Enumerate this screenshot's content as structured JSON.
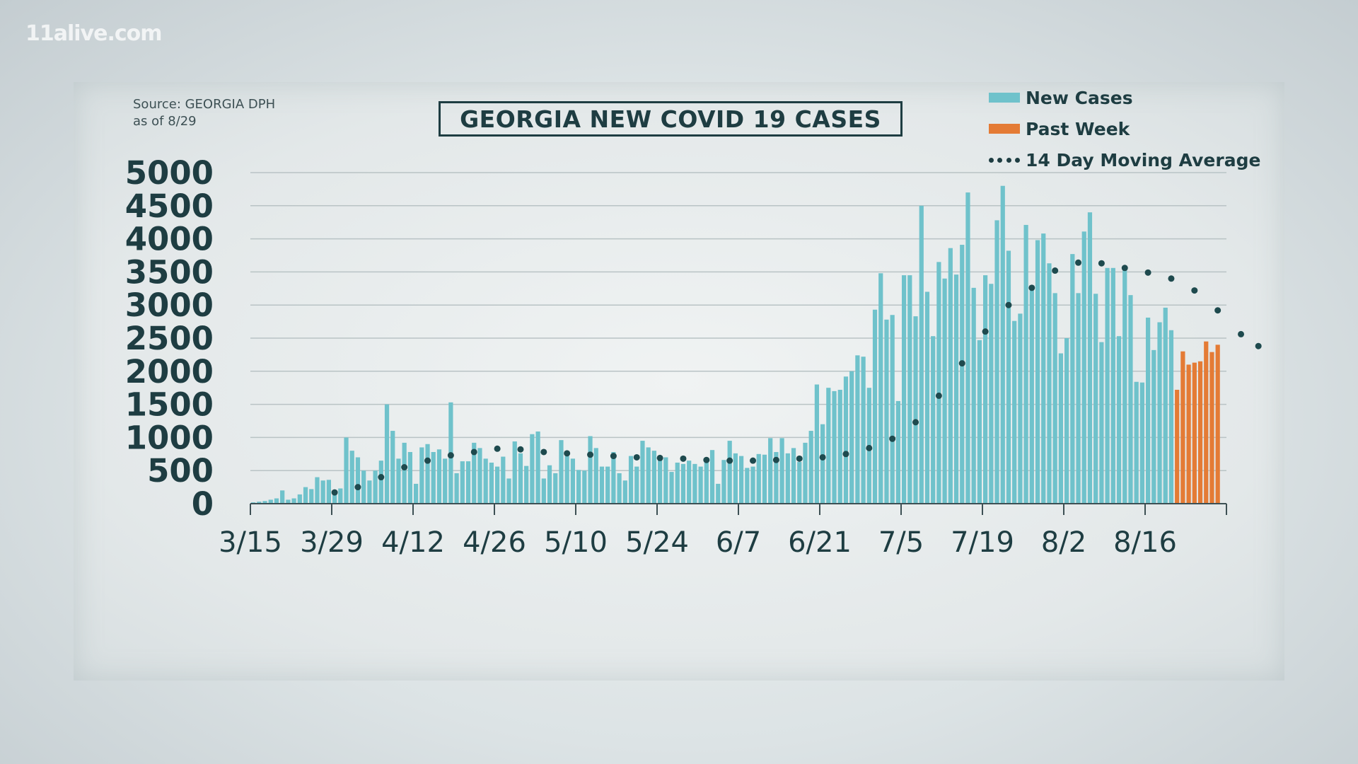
{
  "watermark": "11alive.com",
  "source_line1": "Source: GEORGIA DPH",
  "source_line2": "as of 8/29",
  "colors": {
    "new_cases": "#6fc2cb",
    "past_week": "#e47b35",
    "avg": "#1e4a4e",
    "text": "#1e3d42"
  },
  "chart_data": {
    "type": "bar",
    "title": "GEORGIA NEW COVID 19 CASES",
    "legend": {
      "new_cases": "New Cases",
      "past_week": "Past Week",
      "moving_avg": "14 Day Moving Average"
    },
    "legend_position": "top-right",
    "ylim": [
      0,
      5000
    ],
    "yticks": [
      "0",
      "500",
      "1000",
      "1500",
      "2000",
      "2500",
      "3000",
      "3500",
      "4000",
      "4500",
      "5000"
    ],
    "xticks": [
      "3/15",
      "3/29",
      "4/12",
      "4/26",
      "5/10",
      "5/24",
      "6/7",
      "6/21",
      "7/5",
      "7/19",
      "8/2",
      "8/16"
    ],
    "start_date": "3/15",
    "grid": true,
    "series": [
      {
        "name": "New Cases",
        "values": [
          20,
          30,
          40,
          60,
          80,
          200,
          60,
          80,
          140,
          250,
          220,
          400,
          350,
          360,
          200,
          230,
          1000,
          800,
          700,
          500,
          350,
          500,
          650,
          1500,
          1100,
          680,
          920,
          780,
          300,
          850,
          900,
          780,
          820,
          680,
          1530,
          460,
          640,
          640,
          920,
          840,
          680,
          620,
          560,
          710,
          380,
          940,
          760,
          570,
          1050,
          1090,
          380,
          580,
          460,
          960,
          720,
          680,
          510,
          500,
          1020,
          840,
          560,
          560,
          780,
          460,
          350,
          720,
          560,
          950,
          850,
          800,
          660,
          700,
          480,
          620,
          600,
          650,
          600,
          560,
          690,
          810,
          300,
          660,
          950,
          760,
          720,
          540,
          560,
          750,
          740,
          990,
          780,
          990,
          760,
          840,
          630,
          920,
          1100,
          1800,
          1200,
          1750,
          1700,
          1720,
          1920,
          2000,
          2240,
          2220,
          1750,
          2930,
          3480,
          2780,
          2850,
          1550,
          3450,
          3450,
          2830,
          4500,
          3200,
          2530,
          3650,
          3400,
          3860,
          3460,
          3910,
          4700,
          3260,
          2470,
          3450,
          3320,
          4280,
          4800,
          3820,
          2760,
          2870,
          4210,
          3280,
          3980,
          4080,
          3630,
          3180,
          2270,
          2500,
          3770,
          3180,
          4110,
          4400,
          3170,
          2440,
          3560,
          3560,
          2530,
          3570,
          3150,
          1840,
          1830,
          2810,
          2320,
          2740,
          2960,
          2620
        ],
        "color_key": "new_cases"
      },
      {
        "name": "Past Week",
        "values": [
          1720,
          2300,
          2100,
          2130,
          2150,
          2450,
          2290,
          2400
        ],
        "start_index": 159,
        "color_key": "past_week"
      },
      {
        "name": "14 Day Moving Average",
        "points": [
          [
            14,
            170
          ],
          [
            18,
            250
          ],
          [
            22,
            400
          ],
          [
            26,
            550
          ],
          [
            30,
            650
          ],
          [
            34,
            730
          ],
          [
            38,
            780
          ],
          [
            42,
            830
          ],
          [
            46,
            820
          ],
          [
            50,
            780
          ],
          [
            54,
            760
          ],
          [
            58,
            740
          ],
          [
            62,
            720
          ],
          [
            66,
            700
          ],
          [
            70,
            690
          ],
          [
            74,
            680
          ],
          [
            78,
            660
          ],
          [
            82,
            650
          ],
          [
            86,
            650
          ],
          [
            90,
            660
          ],
          [
            94,
            680
          ],
          [
            98,
            700
          ],
          [
            102,
            750
          ],
          [
            106,
            840
          ],
          [
            110,
            980
          ],
          [
            114,
            1230
          ],
          [
            118,
            1630
          ],
          [
            122,
            2120
          ],
          [
            126,
            2600
          ],
          [
            130,
            3000
          ],
          [
            134,
            3260
          ],
          [
            138,
            3520
          ],
          [
            142,
            3640
          ],
          [
            146,
            3630
          ],
          [
            150,
            3560
          ],
          [
            154,
            3490
          ],
          [
            158,
            3400
          ],
          [
            162,
            3220
          ],
          [
            166,
            2920
          ],
          [
            170,
            2560
          ],
          [
            173,
            2380
          ]
        ],
        "color_key": "avg"
      }
    ]
  }
}
